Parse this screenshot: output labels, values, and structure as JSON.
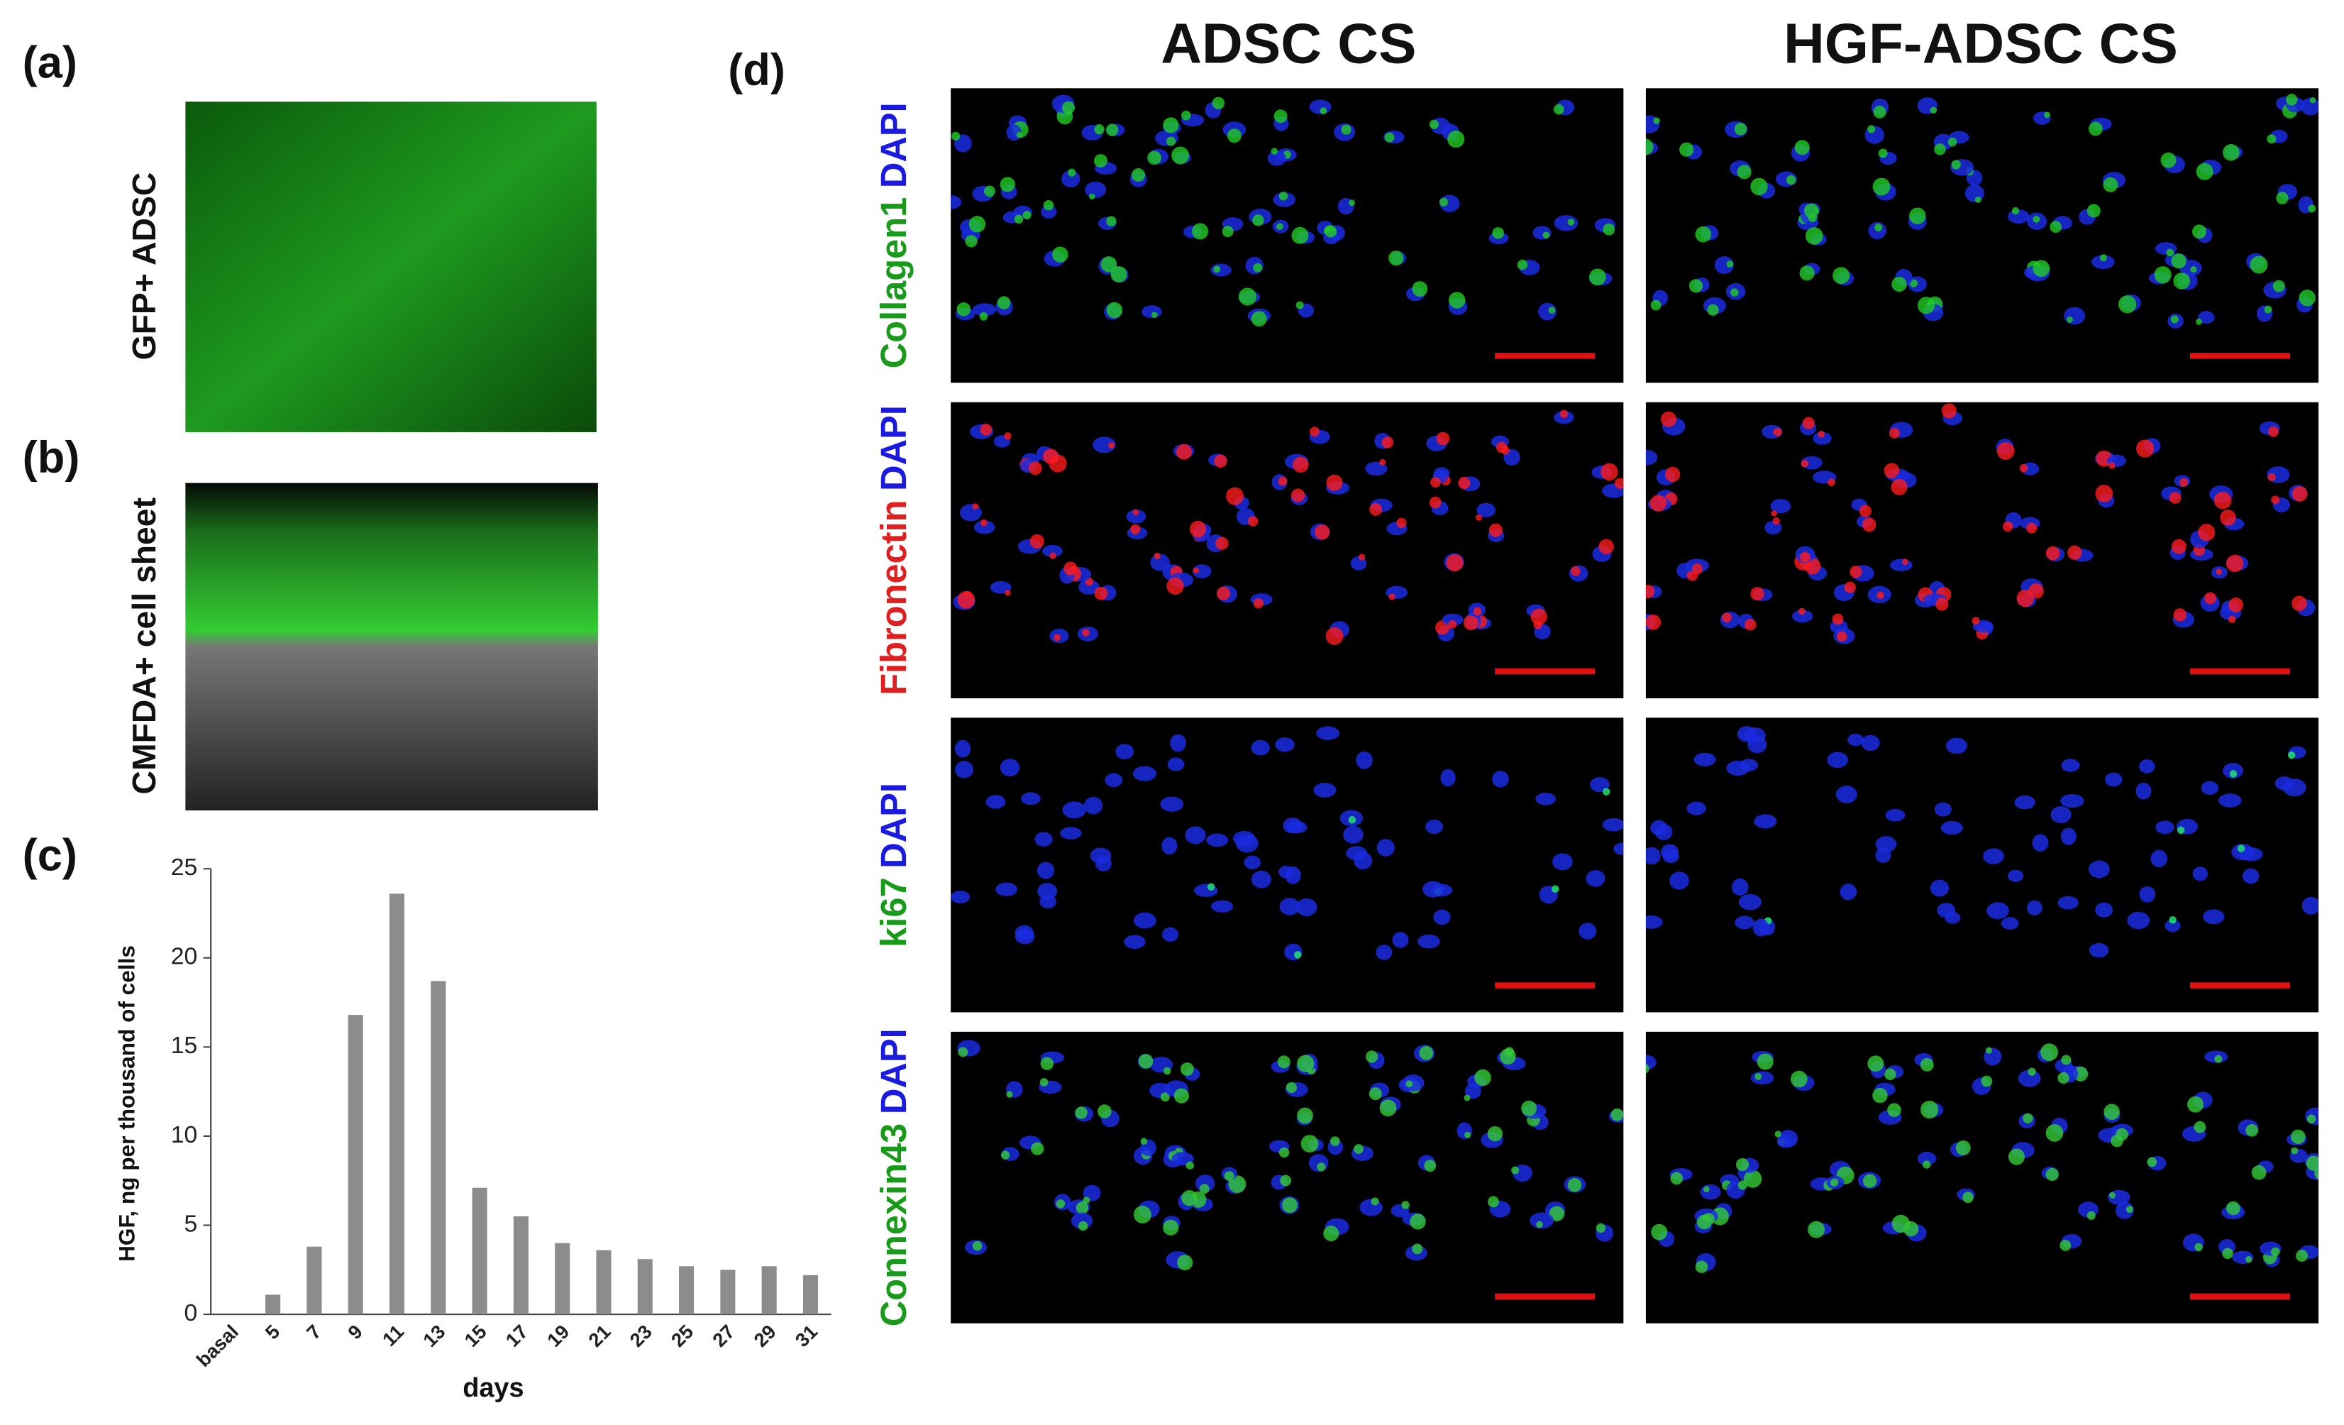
{
  "panel_labels": [
    "(a)",
    "(b)",
    "(c)",
    "(d)"
  ],
  "panel_a": {
    "label": "GFP+ ADSC"
  },
  "panel_b": {
    "label": "CMFDA+ cell sheet"
  },
  "panel_d": {
    "columns": [
      "ADSC CS",
      "HGF-ADSC CS"
    ],
    "rows": [
      {
        "marker": "Collagen1",
        "stain": "DAPI"
      },
      {
        "marker": "Fibronectin",
        "stain": "DAPI"
      },
      {
        "marker": "ki67",
        "stain": "DAPI"
      },
      {
        "marker": "Connexin43",
        "stain": "DAPI"
      }
    ]
  },
  "chart_data": {
    "type": "bar",
    "y_label": "HGF, ng per thousand of cells",
    "x_label": "days",
    "categories": [
      "basal",
      "5",
      "7",
      "9",
      "11",
      "13",
      "15",
      "17",
      "19",
      "21",
      "23",
      "25",
      "27",
      "29",
      "31"
    ],
    "values": [
      0,
      1.1,
      3.8,
      16.8,
      23.6,
      18.7,
      7.1,
      5.5,
      4.0,
      3.6,
      3.1,
      2.7,
      2.5,
      2.7,
      2.2
    ],
    "color": "#8c8c8c",
    "ylim": [
      0,
      25
    ],
    "yticks": [
      0,
      5,
      10,
      15,
      20,
      25
    ]
  }
}
